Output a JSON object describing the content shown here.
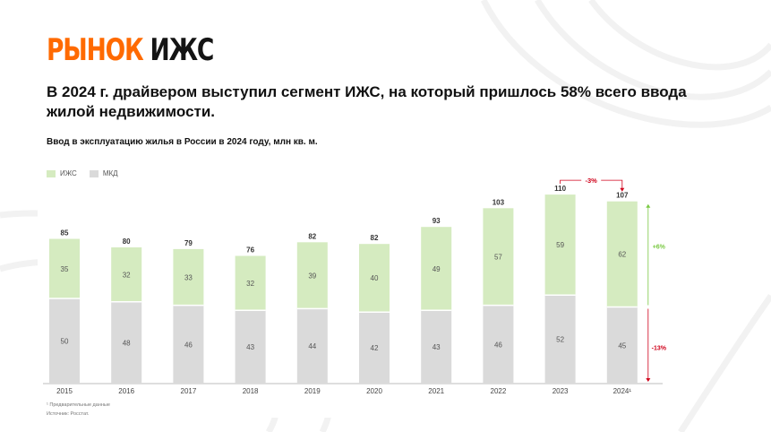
{
  "slide": {
    "title_accent": "РЫНОК",
    "title_rest": "ИЖС",
    "headline": "В 2024 г. драйвером выступил сегмент ИЖС, на который пришлось 58% всего ввода жилой недвижимости.",
    "subtitle": "Ввод в эксплуатацию жилья в России в 2024 году, млн кв. м.",
    "footnote": "¹ Предварительные данные",
    "source": "Источник: Росстат.",
    "colors": {
      "accent": "#ff6a00",
      "izhs": "#d5ebc0",
      "mkd": "#dadada",
      "negative": "#d0021b",
      "positive": "#7ac943"
    }
  },
  "legend": [
    {
      "label": "ИЖС",
      "color": "#d5ebc0"
    },
    {
      "label": "МКД",
      "color": "#dadada"
    }
  ],
  "chart_data": {
    "type": "bar",
    "stacked": true,
    "categories": [
      "2015",
      "2016",
      "2017",
      "2018",
      "2019",
      "2020",
      "2021",
      "2022",
      "2023",
      "2024¹"
    ],
    "series": [
      {
        "name": "МКД",
        "values": [
          50,
          48,
          46,
          43,
          44,
          42,
          43,
          46,
          52,
          45
        ]
      },
      {
        "name": "ИЖС",
        "values": [
          35,
          32,
          33,
          32,
          39,
          40,
          49,
          57,
          59,
          62
        ]
      }
    ],
    "totals": [
      85,
      80,
      79,
      76,
      82,
      82,
      93,
      103,
      110,
      107
    ],
    "annotations": {
      "total_change": "-3%",
      "izhs_change": "+6%",
      "mkd_change": "-13%"
    },
    "ylim": [
      0,
      110
    ],
    "grid": false,
    "legend_position": "top-left"
  }
}
